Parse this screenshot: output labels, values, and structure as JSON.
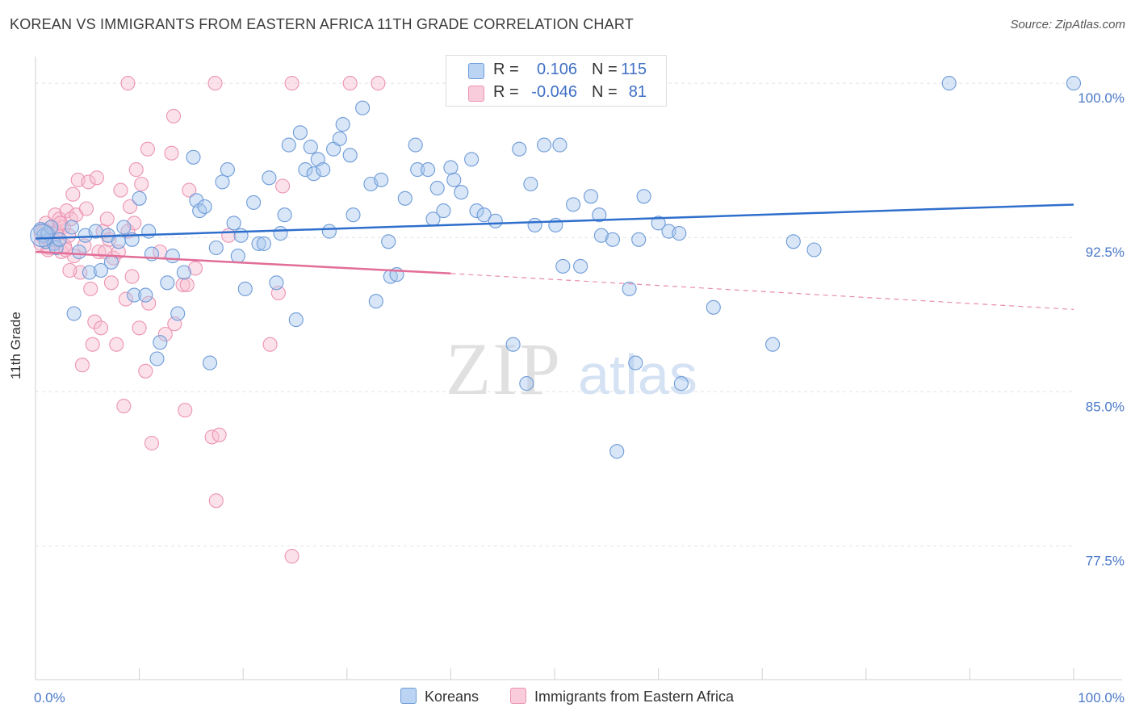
{
  "title": "KOREAN VS IMMIGRANTS FROM EASTERN AFRICA 11TH GRADE CORRELATION CHART",
  "source": "Source: ZipAtlas.com",
  "watermark": {
    "zip": "ZIP",
    "atlas": "atlas"
  },
  "legend": {
    "rows": [
      {
        "r_label": "R =",
        "r_value": "0.106",
        "n_label": "N =",
        "n_value": "115"
      },
      {
        "r_label": "R =",
        "r_value": "-0.046",
        "n_label": "N =",
        "n_value": "81"
      }
    ]
  },
  "bottom_legend": {
    "koreans": "Koreans",
    "eastern_africa": "Immigrants from Eastern Africa"
  },
  "colors": {
    "korean_fill": "#a9c7ee",
    "korean_stroke": "#6e9bd8",
    "korean_line": "#2f6fcc",
    "africa_fill": "#f6bfd1",
    "africa_stroke": "#ec93b2",
    "africa_line": "#e26d98",
    "tick_text": "#4a78c8",
    "grid": "#e3e3e3"
  },
  "chart_data": {
    "type": "scatter",
    "title": "KOREAN VS IMMIGRANTS FROM EASTERN AFRICA 11TH GRADE CORRELATION CHART",
    "xlabel": "",
    "ylabel": "11th Grade",
    "xlim": [
      0,
      100
    ],
    "ylim": [
      71.0,
      101.3
    ],
    "x_tick_labels": [
      {
        "value": 0,
        "label": "0.0%"
      },
      {
        "value": 100,
        "label": "100.0%"
      }
    ],
    "x_minor_ticks": [
      10,
      20,
      30,
      40,
      50,
      60,
      70,
      80,
      90,
      100
    ],
    "y_ticks": [
      {
        "value": 100.0,
        "label": "100.0%"
      },
      {
        "value": 92.5,
        "label": "92.5%"
      },
      {
        "value": 85.0,
        "label": "85.0%"
      },
      {
        "value": 77.5,
        "label": "77.5%"
      }
    ],
    "series": [
      {
        "name": "Koreans",
        "R": 0.106,
        "N": 115,
        "trend": {
          "x": [
            0,
            100
          ],
          "y": [
            92.45,
            94.1
          ]
        },
        "points": [
          [
            0.5,
            92.9
          ],
          [
            0.8,
            92.6
          ],
          [
            1.0,
            92.3
          ],
          [
            1.2,
            92.7
          ],
          [
            1.5,
            93.0
          ],
          [
            1.8,
            92.2
          ],
          [
            2.0,
            92.0
          ],
          [
            2.3,
            92.4
          ],
          [
            3.5,
            93.0
          ],
          [
            3.7,
            88.8
          ],
          [
            4.2,
            91.8
          ],
          [
            4.8,
            92.6
          ],
          [
            5.2,
            90.8
          ],
          [
            5.8,
            92.8
          ],
          [
            6.3,
            90.9
          ],
          [
            7.0,
            92.6
          ],
          [
            7.3,
            91.3
          ],
          [
            8.0,
            92.3
          ],
          [
            8.5,
            93.0
          ],
          [
            9.3,
            92.4
          ],
          [
            9.5,
            89.7
          ],
          [
            10.0,
            94.4
          ],
          [
            10.6,
            89.7
          ],
          [
            10.9,
            92.8
          ],
          [
            11.2,
            91.7
          ],
          [
            11.7,
            86.6
          ],
          [
            12.0,
            87.4
          ],
          [
            12.7,
            90.3
          ],
          [
            13.2,
            91.6
          ],
          [
            13.7,
            88.8
          ],
          [
            14.3,
            90.8
          ],
          [
            15.2,
            96.4
          ],
          [
            15.5,
            94.3
          ],
          [
            15.8,
            93.8
          ],
          [
            16.3,
            94.0
          ],
          [
            16.8,
            86.4
          ],
          [
            17.4,
            92.0
          ],
          [
            18.0,
            95.2
          ],
          [
            18.5,
            95.8
          ],
          [
            19.1,
            93.2
          ],
          [
            19.5,
            91.6
          ],
          [
            19.8,
            92.6
          ],
          [
            20.2,
            90.0
          ],
          [
            21.0,
            94.2
          ],
          [
            21.5,
            92.2
          ],
          [
            22.0,
            92.2
          ],
          [
            22.5,
            95.4
          ],
          [
            23.2,
            90.3
          ],
          [
            23.6,
            92.7
          ],
          [
            24.0,
            93.6
          ],
          [
            24.4,
            97.0
          ],
          [
            25.1,
            88.5
          ],
          [
            25.5,
            97.6
          ],
          [
            26.0,
            95.8
          ],
          [
            26.5,
            96.9
          ],
          [
            26.8,
            95.6
          ],
          [
            27.2,
            96.3
          ],
          [
            27.7,
            95.8
          ],
          [
            28.3,
            92.8
          ],
          [
            28.7,
            96.8
          ],
          [
            29.3,
            97.3
          ],
          [
            29.6,
            98.0
          ],
          [
            30.3,
            96.5
          ],
          [
            30.6,
            93.6
          ],
          [
            31.5,
            98.8
          ],
          [
            32.3,
            95.1
          ],
          [
            32.8,
            89.4
          ],
          [
            33.3,
            95.3
          ],
          [
            34.0,
            92.3
          ],
          [
            34.2,
            90.6
          ],
          [
            34.8,
            90.7
          ],
          [
            35.6,
            94.4
          ],
          [
            36.6,
            97.0
          ],
          [
            36.8,
            95.8
          ],
          [
            37.8,
            95.8
          ],
          [
            38.3,
            93.4
          ],
          [
            38.7,
            94.9
          ],
          [
            39.3,
            93.8
          ],
          [
            40.0,
            95.9
          ],
          [
            40.3,
            95.3
          ],
          [
            41.0,
            94.7
          ],
          [
            42.0,
            96.3
          ],
          [
            42.5,
            93.8
          ],
          [
            43.2,
            93.6
          ],
          [
            44.3,
            93.3
          ],
          [
            46.0,
            87.3
          ],
          [
            46.6,
            96.8
          ],
          [
            47.3,
            85.4
          ],
          [
            47.7,
            95.1
          ],
          [
            48.1,
            93.1
          ],
          [
            49.0,
            97.0
          ],
          [
            50.1,
            93.1
          ],
          [
            50.5,
            97.0
          ],
          [
            50.8,
            91.1
          ],
          [
            51.8,
            94.1
          ],
          [
            52.5,
            91.1
          ],
          [
            53.5,
            94.5
          ],
          [
            54.3,
            93.6
          ],
          [
            54.5,
            92.6
          ],
          [
            55.6,
            92.4
          ],
          [
            56.0,
            82.1
          ],
          [
            57.2,
            90.0
          ],
          [
            57.8,
            86.4
          ],
          [
            58.1,
            92.4
          ],
          [
            58.6,
            94.5
          ],
          [
            60.0,
            93.2
          ],
          [
            61.0,
            92.8
          ],
          [
            62.0,
            92.7
          ],
          [
            62.2,
            85.4
          ],
          [
            65.3,
            89.1
          ],
          [
            71.0,
            87.3
          ],
          [
            73.0,
            92.3
          ],
          [
            75.0,
            91.9
          ],
          [
            88.0,
            100.0
          ],
          [
            100.0,
            100.0
          ]
        ]
      },
      {
        "name": "Immigrants from Eastern Africa",
        "R": -0.046,
        "N": 81,
        "trend": {
          "x": [
            0,
            40
          ],
          "y": [
            91.8,
            90.75
          ]
        },
        "trend_dashed": {
          "x": [
            40,
            100
          ],
          "y": [
            90.75,
            89.0
          ]
        },
        "points": [
          [
            0.5,
            92.2
          ],
          [
            0.8,
            92.8
          ],
          [
            1.0,
            93.2
          ],
          [
            1.1,
            92.6
          ],
          [
            1.3,
            92.0
          ],
          [
            1.5,
            93.0
          ],
          [
            1.7,
            92.4
          ],
          [
            1.9,
            93.6
          ],
          [
            2.1,
            92.8
          ],
          [
            2.3,
            93.4
          ],
          [
            2.5,
            91.8
          ],
          [
            2.7,
            93.0
          ],
          [
            2.8,
            92.1
          ],
          [
            3.0,
            93.8
          ],
          [
            3.2,
            92.6
          ],
          [
            3.4,
            93.4
          ],
          [
            3.6,
            94.6
          ],
          [
            3.7,
            91.6
          ],
          [
            3.9,
            93.6
          ],
          [
            4.1,
            95.3
          ],
          [
            4.3,
            90.8
          ],
          [
            4.5,
            86.3
          ],
          [
            4.7,
            92.1
          ],
          [
            4.9,
            93.9
          ],
          [
            5.1,
            95.2
          ],
          [
            5.3,
            90.0
          ],
          [
            5.5,
            87.3
          ],
          [
            5.7,
            88.4
          ],
          [
            5.9,
            95.4
          ],
          [
            6.1,
            91.8
          ],
          [
            6.3,
            88.1
          ],
          [
            6.5,
            92.8
          ],
          [
            6.7,
            91.8
          ],
          [
            6.9,
            93.4
          ],
          [
            7.1,
            92.4
          ],
          [
            7.3,
            90.3
          ],
          [
            7.5,
            91.5
          ],
          [
            7.8,
            87.3
          ],
          [
            8.0,
            91.8
          ],
          [
            8.2,
            94.8
          ],
          [
            8.5,
            84.3
          ],
          [
            8.7,
            89.5
          ],
          [
            8.9,
            92.8
          ],
          [
            9.1,
            94.0
          ],
          [
            9.3,
            90.6
          ],
          [
            9.5,
            93.2
          ],
          [
            9.7,
            95.8
          ],
          [
            10.0,
            88.1
          ],
          [
            10.2,
            95.1
          ],
          [
            10.6,
            86.0
          ],
          [
            10.8,
            96.8
          ],
          [
            10.9,
            89.3
          ],
          [
            11.2,
            82.5
          ],
          [
            12.0,
            91.8
          ],
          [
            12.5,
            87.8
          ],
          [
            13.1,
            96.6
          ],
          [
            13.3,
            98.4
          ],
          [
            13.4,
            88.3
          ],
          [
            14.2,
            90.2
          ],
          [
            14.4,
            84.1
          ],
          [
            14.6,
            90.2
          ],
          [
            14.8,
            94.8
          ],
          [
            15.4,
            91.0
          ],
          [
            17.0,
            82.8
          ],
          [
            17.4,
            79.7
          ],
          [
            17.7,
            82.9
          ],
          [
            18.6,
            92.6
          ],
          [
            22.6,
            87.3
          ],
          [
            23.4,
            89.8
          ],
          [
            24.7,
            77.0
          ],
          [
            23.8,
            95.0
          ],
          [
            8.9,
            100.0
          ],
          [
            17.3,
            100.0
          ],
          [
            24.7,
            100.0
          ],
          [
            30.3,
            100.0
          ],
          [
            33.0,
            100.0
          ],
          [
            1.2,
            91.9
          ],
          [
            2.0,
            92.7
          ],
          [
            2.4,
            93.2
          ],
          [
            2.9,
            91.9
          ],
          [
            3.3,
            90.9
          ]
        ]
      }
    ]
  }
}
